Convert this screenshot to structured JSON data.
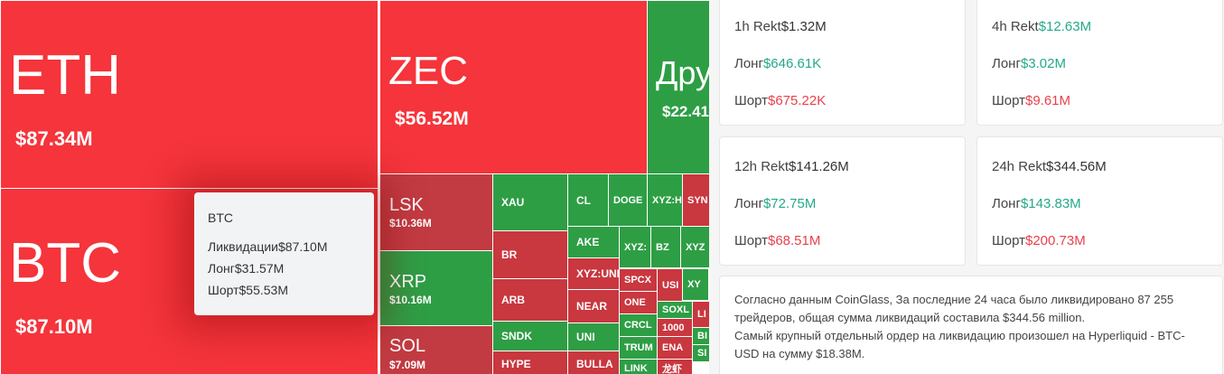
{
  "treemap": {
    "tiles": [
      {
        "label": "ETH",
        "value": "$87.34M"
      },
      {
        "label": "BTC",
        "value": "$87.10M"
      },
      {
        "label": "ZEC",
        "value": "$56.52M"
      },
      {
        "label": "Дру",
        "value": "$22.41"
      },
      {
        "label": "LSK",
        "value": "$10.36M"
      },
      {
        "label": "XRP",
        "value": "$10.16M"
      },
      {
        "label": "SOL",
        "value": "$7.09M"
      },
      {
        "label": "XAU"
      },
      {
        "label": "BR"
      },
      {
        "label": "ARB"
      },
      {
        "label": "SNDK"
      },
      {
        "label": "HYPE"
      },
      {
        "label": "CL"
      },
      {
        "label": "DOGE"
      },
      {
        "label": "XYZ:H"
      },
      {
        "label": "SYN"
      },
      {
        "label": "AKE"
      },
      {
        "label": "XYZ:"
      },
      {
        "label": "BZ"
      },
      {
        "label": "XYZ"
      },
      {
        "label": "XYZ:UNI"
      },
      {
        "label": "NEAR"
      },
      {
        "label": "UNI"
      },
      {
        "label": "BULLA"
      },
      {
        "label": "SPCX"
      },
      {
        "label": "ONE"
      },
      {
        "label": "CRCL"
      },
      {
        "label": "TRUM"
      },
      {
        "label": "LINK"
      },
      {
        "label": "USI"
      },
      {
        "label": "XY"
      },
      {
        "label": "SOXL"
      },
      {
        "label": "LI"
      },
      {
        "label": "1000"
      },
      {
        "label": "BI"
      },
      {
        "label": "ENA"
      },
      {
        "label": "SI"
      },
      {
        "label": "龙虾"
      }
    ]
  },
  "tooltip": {
    "title": "BTC",
    "rows": [
      {
        "label": "Ликвидации",
        "value": "$87.10M"
      },
      {
        "label": "Лонг",
        "value": "$31.57M"
      },
      {
        "label": "Шорт",
        "value": "$55.53M"
      }
    ]
  },
  "cards": [
    {
      "title": "1h Rekt",
      "total": "$1.32M",
      "long_label": "Лонг",
      "long": "$646.61K",
      "short_label": "Шорт",
      "short": "$675.22K"
    },
    {
      "title": "4h Rekt",
      "total": "$12.63M",
      "long_label": "Лонг",
      "long": "$3.02M",
      "short_label": "Шорт",
      "short": "$9.61M"
    },
    {
      "title": "12h Rekt",
      "total": "$141.26M",
      "long_label": "Лонг",
      "long": "$72.75M",
      "short_label": "Шорт",
      "short": "$68.51M"
    },
    {
      "title": "24h Rekt",
      "total": "$344.56M",
      "long_label": "Лонг",
      "long": "$143.83M",
      "short_label": "Шорт",
      "short": "$200.73M"
    }
  ],
  "summary": [
    "Согласно данным CoinGlass, За последние 24 часа было ликвидировано 87 255 трейдеров, общая сумма ликвидаций составила $344.56 million.",
    "Самый крупный отдельный ордер на ликвидацию произошел на Hyperliquid - BTC-USD на сумму $18.38M."
  ]
}
